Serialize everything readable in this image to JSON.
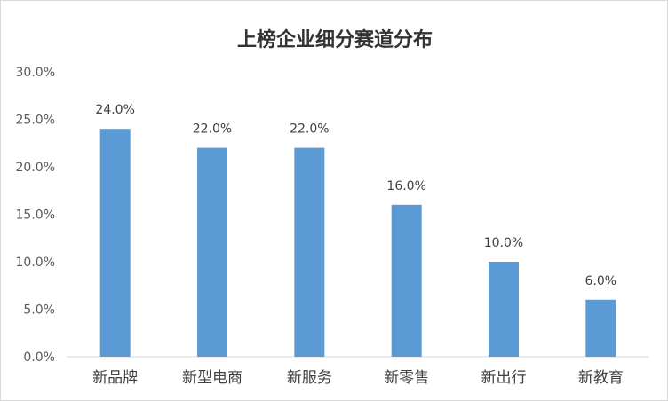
{
  "chart_data": {
    "type": "bar",
    "title": "上榜企业细分赛道分布",
    "categories": [
      "新品牌",
      "新型电商",
      "新服务",
      "新零售",
      "新出行",
      "新教育"
    ],
    "values": [
      24.0,
      22.0,
      22.0,
      16.0,
      10.0,
      6.0
    ],
    "value_labels": [
      "24.0%",
      "22.0%",
      "22.0%",
      "16.0%",
      "10.0%",
      "6.0%"
    ],
    "y_ticks": [
      "0.0%",
      "5.0%",
      "10.0%",
      "15.0%",
      "20.0%",
      "25.0%",
      "30.0%"
    ],
    "ylim": [
      0,
      30
    ],
    "legend": "none",
    "grid": false,
    "bar_color": "#5b9bd5"
  }
}
